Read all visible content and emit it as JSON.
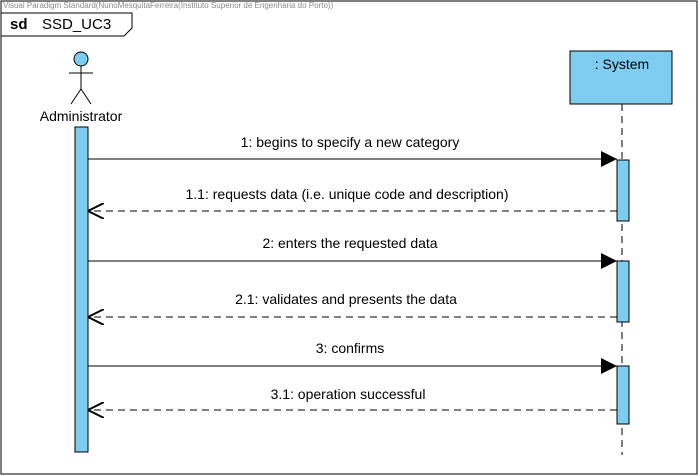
{
  "watermark": "Visual Paradigm Standard(NunoMesquitaFerreira(Instituto Superior de Engenharia do Porto))",
  "frame": {
    "keyword": "sd",
    "name": "SSD_UC3"
  },
  "participants": {
    "actor": "Administrator",
    "system": ": System"
  },
  "colors": {
    "lifeline_fill": "#7ECCF0",
    "line": "#000000"
  },
  "messages": [
    {
      "label": "1: begins to specify a new category",
      "type": "sync",
      "direction": "to-system"
    },
    {
      "label": "1.1: requests data (i.e. unique code and description)",
      "type": "return",
      "direction": "to-actor"
    },
    {
      "label": "2: enters the requested data",
      "type": "sync",
      "direction": "to-system"
    },
    {
      "label": "2.1: validates and presents the data",
      "type": "return",
      "direction": "to-actor"
    },
    {
      "label": "3: confirms",
      "type": "sync",
      "direction": "to-system"
    },
    {
      "label": "3.1: operation successful",
      "type": "return",
      "direction": "to-actor"
    }
  ]
}
